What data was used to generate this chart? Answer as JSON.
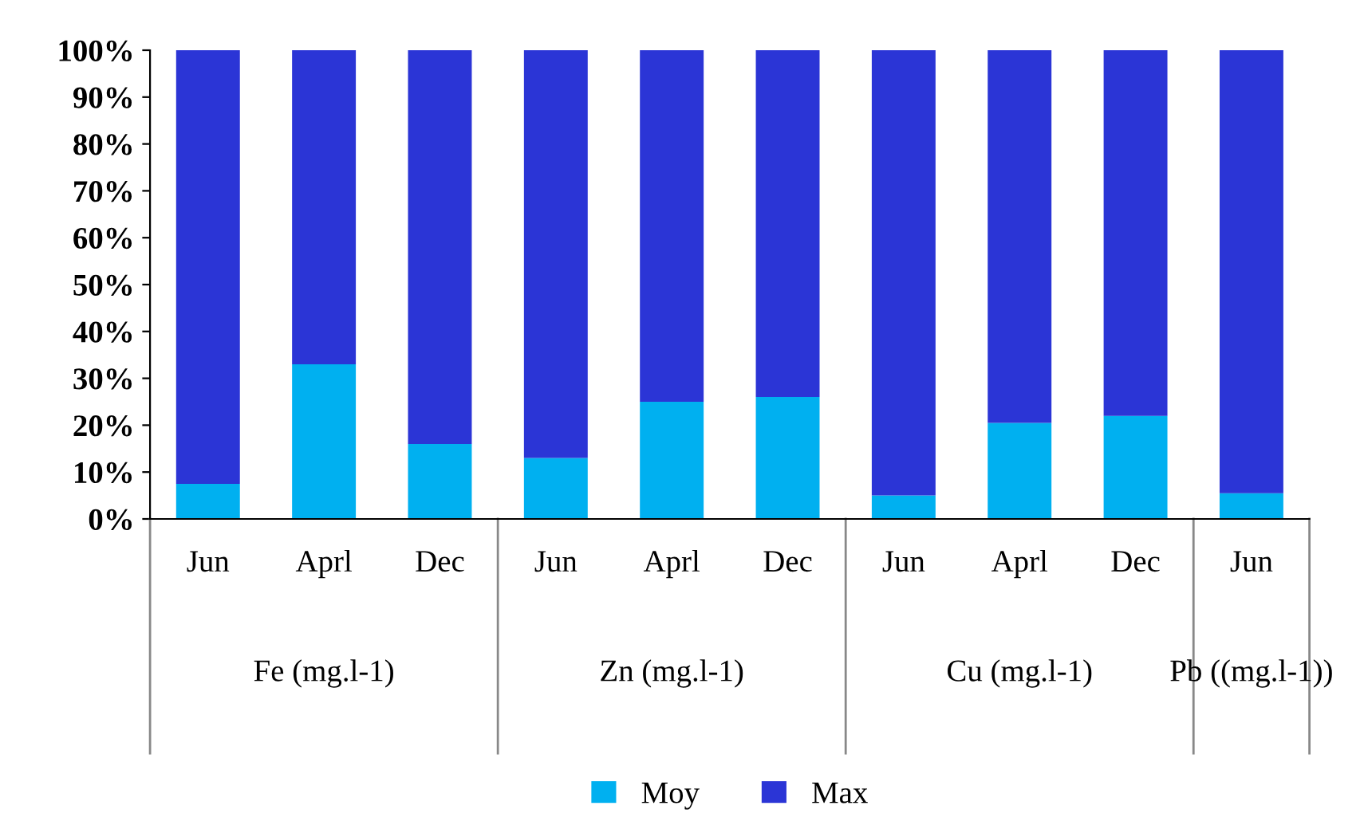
{
  "chart_data": {
    "type": "bar",
    "stacked": true,
    "categories": [
      "Jun",
      "Aprl",
      "Dec",
      "Jun",
      "Aprl",
      "Dec",
      "Jun",
      "Aprl",
      "Dec",
      "Jun"
    ],
    "series": [
      {
        "name": "Moy",
        "color": "#00b0f0",
        "values": [
          7.5,
          33,
          16,
          13,
          25,
          26,
          5,
          20.5,
          22,
          5.5
        ]
      },
      {
        "name": "Max",
        "color": "#2b35d6",
        "values": [
          92.5,
          67,
          84,
          87,
          75,
          74,
          95,
          79.5,
          78,
          94.5
        ]
      }
    ],
    "ylim": [
      0,
      100
    ],
    "yticks": [
      {
        "value": 0,
        "label": "0%"
      },
      {
        "value": 10,
        "label": "10%"
      },
      {
        "value": 20,
        "label": "20%"
      },
      {
        "value": 30,
        "label": "30%"
      },
      {
        "value": 40,
        "label": "40%"
      },
      {
        "value": 50,
        "label": "50%"
      },
      {
        "value": 60,
        "label": "60%"
      },
      {
        "value": 70,
        "label": "70%"
      },
      {
        "value": 80,
        "label": "80%"
      },
      {
        "value": 90,
        "label": "90%"
      },
      {
        "value": 100,
        "label": "100%"
      }
    ],
    "annotations": [
      "Fe (mg.l-1)",
      "Zn (mg.l-1)",
      "Cu (mg.l-1)",
      "Pb ((mg.l-1))"
    ],
    "legend": "bottom",
    "grid": false
  }
}
